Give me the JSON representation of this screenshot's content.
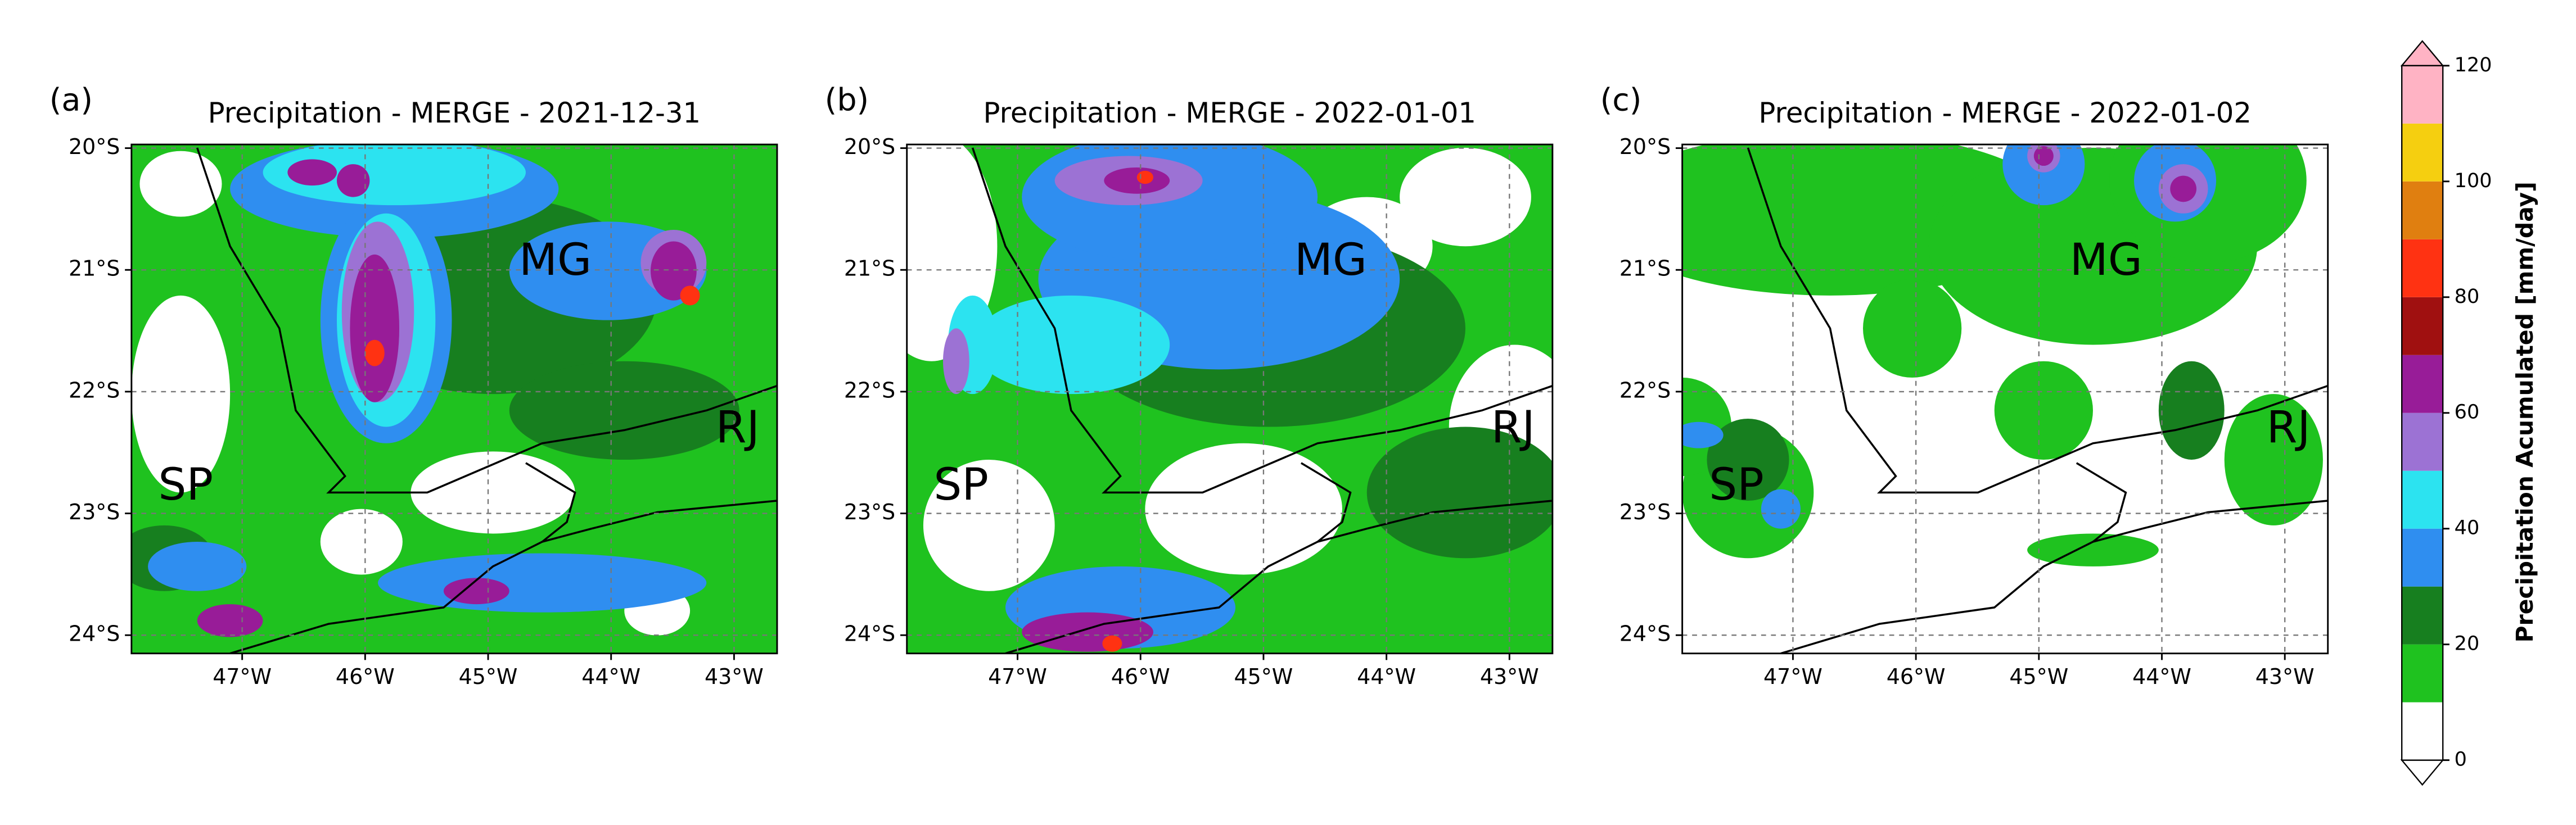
{
  "axes": {
    "xlim": [
      -47.9,
      -42.65
    ],
    "ylim": [
      -24.15,
      -19.97
    ],
    "xticks": [
      {
        "value": -47,
        "label": "47°W"
      },
      {
        "value": -46,
        "label": "46°W"
      },
      {
        "value": -45,
        "label": "45°W"
      },
      {
        "value": -44,
        "label": "44°W"
      },
      {
        "value": -43,
        "label": "43°W"
      }
    ],
    "yticks": [
      {
        "value": -20,
        "label": "20°S"
      },
      {
        "value": -21,
        "label": "21°S"
      },
      {
        "value": -22,
        "label": "22°S"
      },
      {
        "value": -23,
        "label": "23°S"
      },
      {
        "value": -24,
        "label": "24°S"
      }
    ]
  },
  "panels": [
    {
      "label": "(a)",
      "title": "Precipitation - MERGE - 2021-12-31",
      "regions": [
        "MG",
        "RJ",
        "SP"
      ]
    },
    {
      "label": "(b)",
      "title": "Precipitation - MERGE - 2022-01-01",
      "regions": [
        "MG",
        "RJ",
        "SP"
      ]
    },
    {
      "label": "(c)",
      "title": "Precipitation - MERGE - 2022-01-02",
      "regions": [
        "MG",
        "RJ",
        "SP"
      ]
    }
  ],
  "colorbar": {
    "label": "Precipitation Acumulated [mm/day]",
    "levels": [
      0,
      10,
      20,
      30,
      40,
      50,
      60,
      70,
      80,
      90,
      100,
      110,
      120
    ],
    "colors": [
      "#ffffff",
      "#1fc21f",
      "#177f1f",
      "#2f8ef0",
      "#2ce3f0",
      "#9c72d4",
      "#981c98",
      "#a01010",
      "#ff3212",
      "#e07f10",
      "#f5cf10",
      "#ffb3c4"
    ],
    "ticks": [
      0,
      20,
      40,
      60,
      80,
      100,
      120
    ]
  }
}
